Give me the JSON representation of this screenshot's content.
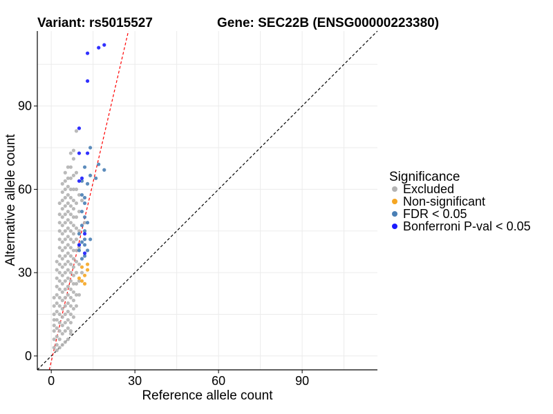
{
  "chart_data": {
    "type": "scatter",
    "title_left": "Variant: rs5015527",
    "title_right": "Gene: SEC22B (ENSG00000223380)",
    "xlabel": "Reference allele count",
    "ylabel": "Alternative allele count",
    "xlim": [
      -5,
      117
    ],
    "ylim": [
      -5,
      117
    ],
    "xticks": [
      0,
      30,
      60,
      90
    ],
    "yticks": [
      0,
      30,
      60,
      90
    ],
    "grid": true,
    "legend": {
      "title": "Significance",
      "position": "right",
      "entries": [
        {
          "label": "Excluded",
          "color": "#b3b3b3"
        },
        {
          "label": "Non-significant",
          "color": "#f5a623"
        },
        {
          "label": "FDR < 0.05",
          "color": "#4a7fb5"
        },
        {
          "label": "Bonferroni P-val < 0.05",
          "color": "#1a1aff"
        }
      ]
    },
    "reference_lines": [
      {
        "name": "identity",
        "slope": 1,
        "intercept": 0,
        "style": "dashed",
        "color": "#000000"
      },
      {
        "name": "fitted",
        "slope": 4.3,
        "intercept": -2,
        "style": "dashed",
        "color": "#ff0000"
      }
    ],
    "series": [
      {
        "name": "Excluded",
        "color": "#b3b3b3",
        "points": [
          [
            1,
            3
          ],
          [
            1,
            6
          ],
          [
            1,
            9
          ],
          [
            1,
            11
          ],
          [
            1,
            13
          ],
          [
            1,
            15
          ],
          [
            1,
            18
          ],
          [
            1,
            21
          ],
          [
            2,
            2
          ],
          [
            2,
            4
          ],
          [
            2,
            7
          ],
          [
            2,
            10
          ],
          [
            2,
            13
          ],
          [
            2,
            16
          ],
          [
            2,
            19
          ],
          [
            2,
            22
          ],
          [
            2,
            25
          ],
          [
            2,
            28
          ],
          [
            2,
            31
          ],
          [
            2,
            34
          ],
          [
            3,
            3
          ],
          [
            3,
            6
          ],
          [
            3,
            9
          ],
          [
            3,
            12
          ],
          [
            3,
            15
          ],
          [
            3,
            18
          ],
          [
            3,
            21
          ],
          [
            3,
            24
          ],
          [
            3,
            27
          ],
          [
            3,
            30
          ],
          [
            3,
            33
          ],
          [
            3,
            36
          ],
          [
            3,
            39
          ],
          [
            3,
            42
          ],
          [
            3,
            45
          ],
          [
            3,
            48
          ],
          [
            3,
            51
          ],
          [
            3,
            55
          ],
          [
            4,
            4
          ],
          [
            4,
            8
          ],
          [
            4,
            11
          ],
          [
            4,
            14
          ],
          [
            4,
            17
          ],
          [
            4,
            20
          ],
          [
            4,
            23
          ],
          [
            4,
            26
          ],
          [
            4,
            29
          ],
          [
            4,
            32
          ],
          [
            4,
            35
          ],
          [
            4,
            38
          ],
          [
            4,
            41
          ],
          [
            4,
            44
          ],
          [
            4,
            47
          ],
          [
            4,
            50
          ],
          [
            4,
            53
          ],
          [
            4,
            56
          ],
          [
            4,
            59
          ],
          [
            4,
            62
          ],
          [
            5,
            5
          ],
          [
            5,
            9
          ],
          [
            5,
            12
          ],
          [
            5,
            15
          ],
          [
            5,
            18
          ],
          [
            5,
            21
          ],
          [
            5,
            24
          ],
          [
            5,
            27
          ],
          [
            5,
            30
          ],
          [
            5,
            33
          ],
          [
            5,
            36
          ],
          [
            5,
            39
          ],
          [
            5,
            42
          ],
          [
            5,
            45
          ],
          [
            5,
            48
          ],
          [
            5,
            51
          ],
          [
            5,
            54
          ],
          [
            5,
            57
          ],
          [
            5,
            60
          ],
          [
            5,
            63
          ],
          [
            5,
            66
          ],
          [
            6,
            6
          ],
          [
            6,
            10
          ],
          [
            6,
            13
          ],
          [
            6,
            16
          ],
          [
            6,
            19
          ],
          [
            6,
            22
          ],
          [
            6,
            25
          ],
          [
            6,
            28
          ],
          [
            6,
            31
          ],
          [
            6,
            34
          ],
          [
            6,
            37
          ],
          [
            6,
            40
          ],
          [
            6,
            43
          ],
          [
            6,
            46
          ],
          [
            6,
            49
          ],
          [
            6,
            52
          ],
          [
            6,
            55
          ],
          [
            6,
            58
          ],
          [
            6,
            61
          ],
          [
            6,
            64
          ],
          [
            6,
            68
          ],
          [
            7,
            9
          ],
          [
            7,
            12
          ],
          [
            7,
            15
          ],
          [
            7,
            18
          ],
          [
            7,
            21
          ],
          [
            7,
            24
          ],
          [
            7,
            27
          ],
          [
            7,
            30
          ],
          [
            7,
            33
          ],
          [
            7,
            36
          ],
          [
            7,
            39
          ],
          [
            7,
            42
          ],
          [
            7,
            45
          ],
          [
            7,
            48
          ],
          [
            7,
            51
          ],
          [
            7,
            54
          ],
          [
            7,
            57
          ],
          [
            7,
            60
          ],
          [
            7,
            64
          ],
          [
            7,
            68
          ],
          [
            7,
            73
          ],
          [
            8,
            14
          ],
          [
            8,
            17
          ],
          [
            8,
            20
          ],
          [
            8,
            23
          ],
          [
            8,
            26
          ],
          [
            8,
            29
          ],
          [
            8,
            32
          ],
          [
            8,
            35
          ],
          [
            8,
            38
          ],
          [
            8,
            41
          ],
          [
            8,
            44
          ],
          [
            8,
            47
          ],
          [
            8,
            50
          ],
          [
            8,
            53
          ],
          [
            8,
            56
          ],
          [
            8,
            60
          ],
          [
            8,
            65
          ],
          [
            8,
            71
          ],
          [
            9,
            18
          ],
          [
            9,
            22
          ],
          [
            9,
            26
          ],
          [
            9,
            30
          ],
          [
            9,
            34
          ],
          [
            9,
            38
          ],
          [
            9,
            42
          ],
          [
            9,
            46
          ],
          [
            9,
            50
          ],
          [
            9,
            55
          ],
          [
            9,
            60
          ],
          [
            9,
            66
          ],
          [
            10,
            22
          ],
          [
            10,
            27
          ],
          [
            10,
            33
          ],
          [
            10,
            39
          ],
          [
            10,
            45
          ],
          [
            10,
            52
          ],
          [
            10,
            58
          ],
          [
            7,
            8
          ],
          [
            9,
            81
          ],
          [
            8,
            74
          ],
          [
            11,
            56
          ],
          [
            12,
            48
          ],
          [
            11,
            30
          ]
        ]
      },
      {
        "name": "Non-significant",
        "color": "#f5a623",
        "points": [
          [
            10,
            28
          ],
          [
            11,
            27
          ],
          [
            12,
            26
          ],
          [
            12,
            29
          ],
          [
            13,
            33
          ],
          [
            11,
            32
          ],
          [
            13,
            31
          ]
        ]
      },
      {
        "name": "FDR < 0.05",
        "color": "#4a7fb5",
        "points": [
          [
            10,
            38
          ],
          [
            10,
            40
          ],
          [
            11,
            41
          ],
          [
            12,
            42
          ],
          [
            11,
            35
          ],
          [
            12,
            36
          ],
          [
            14,
            42
          ],
          [
            12,
            45
          ],
          [
            12,
            50
          ],
          [
            13,
            48
          ],
          [
            11,
            52
          ],
          [
            12,
            55
          ],
          [
            11,
            58
          ],
          [
            12,
            57
          ],
          [
            13,
            62
          ],
          [
            14,
            65
          ],
          [
            16,
            64
          ],
          [
            17,
            69
          ],
          [
            19,
            67
          ],
          [
            11,
            63
          ],
          [
            12,
            68
          ],
          [
            14,
            75
          ],
          [
            11,
            47
          ],
          [
            10,
            44
          ],
          [
            13,
            38
          ],
          [
            12,
            40
          ]
        ]
      },
      {
        "name": "Bonferroni P-val < 0.05",
        "color": "#1a1aff",
        "points": [
          [
            10,
            82
          ],
          [
            13,
            99
          ],
          [
            13,
            109
          ],
          [
            17,
            111
          ],
          [
            19,
            112
          ],
          [
            10,
            63
          ],
          [
            11,
            64
          ],
          [
            10,
            73
          ],
          [
            13,
            73
          ],
          [
            10,
            40
          ],
          [
            12,
            37
          ],
          [
            12,
            44
          ]
        ]
      }
    ]
  }
}
